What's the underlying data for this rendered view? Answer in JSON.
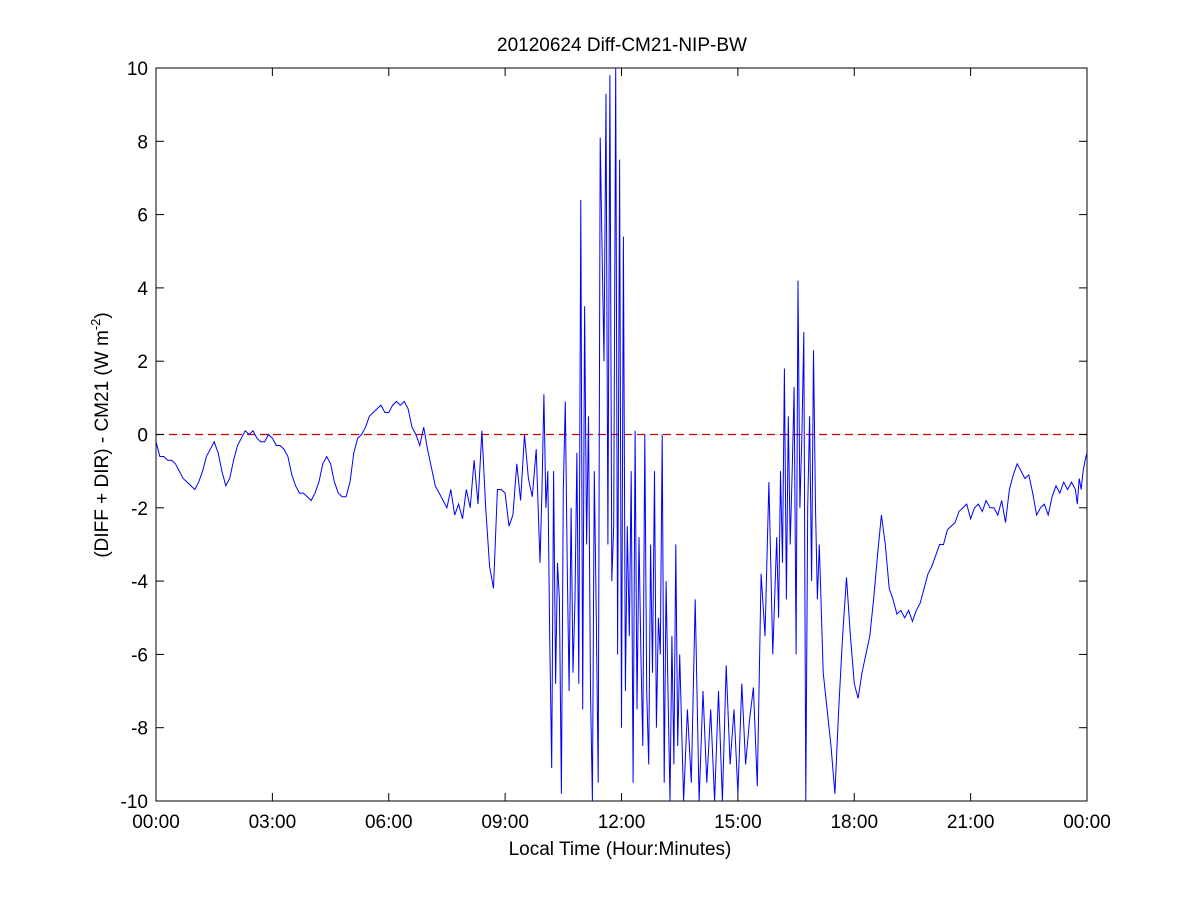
{
  "chart_data": {
    "type": "line",
    "title": "20120624 Diff-CM21-NIP-BW",
    "xlabel": "Local Time (Hour:Minutes)",
    "ylabel": {
      "main": "(DIFF + DIR) - CM21 (W m",
      "superscript": "-2",
      "close": ")"
    },
    "xlim": [
      0,
      24
    ],
    "ylim": [
      -10,
      10
    ],
    "x_ticks": [
      {
        "value": 0,
        "label": "00:00"
      },
      {
        "value": 3,
        "label": "03:00"
      },
      {
        "value": 6,
        "label": "06:00"
      },
      {
        "value": 9,
        "label": "09:00"
      },
      {
        "value": 12,
        "label": "12:00"
      },
      {
        "value": 15,
        "label": "15:00"
      },
      {
        "value": 18,
        "label": "18:00"
      },
      {
        "value": 21,
        "label": "21:00"
      },
      {
        "value": 24,
        "label": "00:00"
      }
    ],
    "y_ticks": [
      {
        "value": 10,
        "label": "10"
      },
      {
        "value": 8,
        "label": "8"
      },
      {
        "value": 6,
        "label": "6"
      },
      {
        "value": 4,
        "label": "4"
      },
      {
        "value": 2,
        "label": "2"
      },
      {
        "value": 0,
        "label": "0"
      },
      {
        "value": -2,
        "label": "-2"
      },
      {
        "value": -4,
        "label": "-4"
      },
      {
        "value": -6,
        "label": "-6"
      },
      {
        "value": -8,
        "label": "-8"
      },
      {
        "value": -10,
        "label": "-10"
      }
    ],
    "grid": false,
    "reference_line": {
      "y": 0,
      "color": "#cc0000",
      "style": "dashed"
    },
    "series": [
      {
        "color": "#0000ff",
        "points": [
          [
            0.0,
            -0.2
          ],
          [
            0.1,
            -0.6
          ],
          [
            0.2,
            -0.6
          ],
          [
            0.3,
            -0.7
          ],
          [
            0.4,
            -0.7
          ],
          [
            0.5,
            -0.8
          ],
          [
            0.6,
            -1.0
          ],
          [
            0.7,
            -1.2
          ],
          [
            0.8,
            -1.3
          ],
          [
            0.9,
            -1.4
          ],
          [
            1.0,
            -1.5
          ],
          [
            1.1,
            -1.3
          ],
          [
            1.2,
            -1.0
          ],
          [
            1.3,
            -0.6
          ],
          [
            1.4,
            -0.4
          ],
          [
            1.5,
            -0.2
          ],
          [
            1.6,
            -0.5
          ],
          [
            1.7,
            -1.0
          ],
          [
            1.8,
            -1.4
          ],
          [
            1.9,
            -1.2
          ],
          [
            2.0,
            -0.7
          ],
          [
            2.1,
            -0.3
          ],
          [
            2.2,
            -0.1
          ],
          [
            2.3,
            0.1
          ],
          [
            2.4,
            0.0
          ],
          [
            2.5,
            0.1
          ],
          [
            2.6,
            -0.1
          ],
          [
            2.7,
            -0.2
          ],
          [
            2.8,
            -0.2
          ],
          [
            2.9,
            0.0
          ],
          [
            3.0,
            -0.1
          ],
          [
            3.1,
            -0.3
          ],
          [
            3.2,
            -0.3
          ],
          [
            3.3,
            -0.4
          ],
          [
            3.4,
            -0.6
          ],
          [
            3.5,
            -1.1
          ],
          [
            3.6,
            -1.4
          ],
          [
            3.7,
            -1.6
          ],
          [
            3.8,
            -1.6
          ],
          [
            3.9,
            -1.7
          ],
          [
            4.0,
            -1.8
          ],
          [
            4.1,
            -1.6
          ],
          [
            4.2,
            -1.3
          ],
          [
            4.3,
            -0.8
          ],
          [
            4.4,
            -0.6
          ],
          [
            4.5,
            -0.8
          ],
          [
            4.6,
            -1.3
          ],
          [
            4.7,
            -1.6
          ],
          [
            4.8,
            -1.7
          ],
          [
            4.9,
            -1.7
          ],
          [
            5.0,
            -1.3
          ],
          [
            5.1,
            -0.5
          ],
          [
            5.2,
            -0.1
          ],
          [
            5.3,
            0.0
          ],
          [
            5.4,
            0.2
          ],
          [
            5.5,
            0.5
          ],
          [
            5.6,
            0.6
          ],
          [
            5.7,
            0.7
          ],
          [
            5.8,
            0.8
          ],
          [
            5.9,
            0.6
          ],
          [
            6.0,
            0.6
          ],
          [
            6.1,
            0.8
          ],
          [
            6.2,
            0.9
          ],
          [
            6.3,
            0.8
          ],
          [
            6.4,
            0.9
          ],
          [
            6.5,
            0.7
          ],
          [
            6.6,
            0.2
          ],
          [
            6.7,
            0.0
          ],
          [
            6.8,
            -0.3
          ],
          [
            6.9,
            0.2
          ],
          [
            7.0,
            -0.4
          ],
          [
            7.1,
            -0.9
          ],
          [
            7.2,
            -1.4
          ],
          [
            7.3,
            -1.6
          ],
          [
            7.4,
            -1.8
          ],
          [
            7.5,
            -2.0
          ],
          [
            7.6,
            -1.5
          ],
          [
            7.7,
            -2.2
          ],
          [
            7.8,
            -1.9
          ],
          [
            7.9,
            -2.3
          ],
          [
            8.0,
            -1.5
          ],
          [
            8.1,
            -2.0
          ],
          [
            8.2,
            -0.7
          ],
          [
            8.3,
            -1.9
          ],
          [
            8.4,
            0.1
          ],
          [
            8.5,
            -2.0
          ],
          [
            8.6,
            -3.6
          ],
          [
            8.7,
            -4.2
          ],
          [
            8.8,
            -1.5
          ],
          [
            8.9,
            -1.5
          ],
          [
            9.0,
            -1.6
          ],
          [
            9.1,
            -2.5
          ],
          [
            9.2,
            -2.2
          ],
          [
            9.3,
            -0.8
          ],
          [
            9.4,
            -1.8
          ],
          [
            9.5,
            0.0
          ],
          [
            9.6,
            -1.2
          ],
          [
            9.7,
            -1.7
          ],
          [
            9.8,
            -0.4
          ],
          [
            9.9,
            -3.5
          ],
          [
            9.95,
            -1.5
          ],
          [
            10.0,
            1.1
          ],
          [
            10.05,
            -2.0
          ],
          [
            10.1,
            -1.0
          ],
          [
            10.15,
            -5.5
          ],
          [
            10.2,
            -9.1
          ],
          [
            10.25,
            -1.0
          ],
          [
            10.3,
            -6.8
          ],
          [
            10.35,
            -3.5
          ],
          [
            10.4,
            -4.5
          ],
          [
            10.45,
            -9.8
          ],
          [
            10.5,
            -1.5
          ],
          [
            10.55,
            0.9
          ],
          [
            10.6,
            -3.5
          ],
          [
            10.65,
            -7.0
          ],
          [
            10.7,
            -2.0
          ],
          [
            10.75,
            -6.5
          ],
          [
            10.8,
            -4.5
          ],
          [
            10.85,
            -0.5
          ],
          [
            10.9,
            -6.8
          ],
          [
            10.95,
            6.4
          ],
          [
            11.0,
            -7.5
          ],
          [
            11.05,
            3.5
          ],
          [
            11.1,
            -3.0
          ],
          [
            11.15,
            0.5
          ],
          [
            11.2,
            -7.0
          ],
          [
            11.25,
            -10.0
          ],
          [
            11.3,
            -1.0
          ],
          [
            11.35,
            -5.0
          ],
          [
            11.4,
            -9.5
          ],
          [
            11.45,
            8.1
          ],
          [
            11.5,
            5.0
          ],
          [
            11.55,
            2.0
          ],
          [
            11.6,
            9.3
          ],
          [
            11.65,
            -3.0
          ],
          [
            11.7,
            9.8
          ],
          [
            11.75,
            -4.0
          ],
          [
            11.8,
            -2.5
          ],
          [
            11.85,
            10.0
          ],
          [
            11.9,
            -6.0
          ],
          [
            11.95,
            7.5
          ],
          [
            12.0,
            -8.0
          ],
          [
            12.05,
            5.4
          ],
          [
            12.1,
            -7.0
          ],
          [
            12.15,
            -2.5
          ],
          [
            12.2,
            -5.5
          ],
          [
            12.25,
            -1.0
          ],
          [
            12.3,
            -9.5
          ],
          [
            12.35,
            0.1
          ],
          [
            12.4,
            -7.5
          ],
          [
            12.45,
            -2.8
          ],
          [
            12.5,
            -6.0
          ],
          [
            12.55,
            -8.5
          ],
          [
            12.6,
            0.0
          ],
          [
            12.65,
            -7.0
          ],
          [
            12.7,
            -9.0
          ],
          [
            12.75,
            -3.0
          ],
          [
            12.8,
            -6.5
          ],
          [
            12.85,
            -1.0
          ],
          [
            12.9,
            -8.0
          ],
          [
            12.95,
            -5.0
          ],
          [
            13.0,
            -6.0
          ],
          [
            13.05,
            0.0
          ],
          [
            13.1,
            -9.5
          ],
          [
            13.15,
            -4.0
          ],
          [
            13.2,
            -7.0
          ],
          [
            13.25,
            -10.0
          ],
          [
            13.3,
            -5.5
          ],
          [
            13.35,
            -9.0
          ],
          [
            13.4,
            -3.0
          ],
          [
            13.45,
            -8.5
          ],
          [
            13.5,
            -6.0
          ],
          [
            13.6,
            -10.0
          ],
          [
            13.7,
            -7.5
          ],
          [
            13.8,
            -9.5
          ],
          [
            13.9,
            -4.5
          ],
          [
            14.0,
            -10.0
          ],
          [
            14.1,
            -7.0
          ],
          [
            14.2,
            -9.5
          ],
          [
            14.3,
            -7.5
          ],
          [
            14.4,
            -10.0
          ],
          [
            14.5,
            -7.0
          ],
          [
            14.6,
            -10.0
          ],
          [
            14.7,
            -6.3
          ],
          [
            14.8,
            -9.0
          ],
          [
            14.9,
            -7.5
          ],
          [
            15.0,
            -9.8
          ],
          [
            15.1,
            -6.8
          ],
          [
            15.2,
            -9.0
          ],
          [
            15.3,
            -7.8
          ],
          [
            15.4,
            -6.9
          ],
          [
            15.5,
            -9.6
          ],
          [
            15.6,
            -3.8
          ],
          [
            15.7,
            -5.5
          ],
          [
            15.8,
            -1.3
          ],
          [
            15.9,
            -6.0
          ],
          [
            16.0,
            -2.8
          ],
          [
            16.05,
            -5.0
          ],
          [
            16.1,
            -1.0
          ],
          [
            16.15,
            -3.5
          ],
          [
            16.2,
            1.8
          ],
          [
            16.25,
            -4.5
          ],
          [
            16.3,
            0.5
          ],
          [
            16.35,
            -3.0
          ],
          [
            16.4,
            -1.0
          ],
          [
            16.45,
            1.3
          ],
          [
            16.5,
            -6.0
          ],
          [
            16.55,
            4.2
          ],
          [
            16.6,
            -2.0
          ],
          [
            16.65,
            0.0
          ],
          [
            16.7,
            2.8
          ],
          [
            16.75,
            -10.0
          ],
          [
            16.8,
            -2.0
          ],
          [
            16.85,
            0.5
          ],
          [
            16.9,
            -4.0
          ],
          [
            16.95,
            2.3
          ],
          [
            17.0,
            -2.0
          ],
          [
            17.05,
            -4.5
          ],
          [
            17.1,
            -3.0
          ],
          [
            17.2,
            -6.5
          ],
          [
            17.3,
            -7.5
          ],
          [
            17.4,
            -8.5
          ],
          [
            17.5,
            -9.8
          ],
          [
            17.6,
            -7.5
          ],
          [
            17.7,
            -5.5
          ],
          [
            17.8,
            -3.9
          ],
          [
            17.9,
            -5.5
          ],
          [
            18.0,
            -6.8
          ],
          [
            18.1,
            -7.2
          ],
          [
            18.2,
            -6.5
          ],
          [
            18.3,
            -6.0
          ],
          [
            18.4,
            -5.5
          ],
          [
            18.5,
            -4.5
          ],
          [
            18.6,
            -3.3
          ],
          [
            18.7,
            -2.2
          ],
          [
            18.8,
            -3.0
          ],
          [
            18.9,
            -4.2
          ],
          [
            19.0,
            -4.5
          ],
          [
            19.1,
            -4.9
          ],
          [
            19.2,
            -4.8
          ],
          [
            19.3,
            -5.0
          ],
          [
            19.4,
            -4.8
          ],
          [
            19.5,
            -5.1
          ],
          [
            19.6,
            -4.8
          ],
          [
            19.7,
            -4.6
          ],
          [
            19.8,
            -4.2
          ],
          [
            19.9,
            -3.8
          ],
          [
            20.0,
            -3.6
          ],
          [
            20.1,
            -3.3
          ],
          [
            20.2,
            -3.0
          ],
          [
            20.3,
            -3.0
          ],
          [
            20.4,
            -2.6
          ],
          [
            20.5,
            -2.5
          ],
          [
            20.6,
            -2.4
          ],
          [
            20.7,
            -2.1
          ],
          [
            20.8,
            -2.0
          ],
          [
            20.9,
            -1.9
          ],
          [
            21.0,
            -2.3
          ],
          [
            21.1,
            -2.0
          ],
          [
            21.2,
            -1.9
          ],
          [
            21.3,
            -2.1
          ],
          [
            21.4,
            -1.8
          ],
          [
            21.5,
            -2.0
          ],
          [
            21.6,
            -2.0
          ],
          [
            21.7,
            -2.2
          ],
          [
            21.8,
            -1.8
          ],
          [
            21.9,
            -2.4
          ],
          [
            22.0,
            -1.5
          ],
          [
            22.1,
            -1.1
          ],
          [
            22.2,
            -0.8
          ],
          [
            22.3,
            -1.0
          ],
          [
            22.4,
            -1.2
          ],
          [
            22.5,
            -1.1
          ],
          [
            22.6,
            -1.6
          ],
          [
            22.7,
            -2.2
          ],
          [
            22.8,
            -2.0
          ],
          [
            22.9,
            -1.9
          ],
          [
            23.0,
            -2.2
          ],
          [
            23.1,
            -1.7
          ],
          [
            23.2,
            -1.4
          ],
          [
            23.3,
            -1.6
          ],
          [
            23.4,
            -1.3
          ],
          [
            23.5,
            -1.5
          ],
          [
            23.6,
            -1.3
          ],
          [
            23.7,
            -1.5
          ],
          [
            23.75,
            -1.9
          ],
          [
            23.8,
            -1.2
          ],
          [
            23.85,
            -1.5
          ],
          [
            23.9,
            -1.0
          ],
          [
            23.95,
            -0.7
          ],
          [
            24.0,
            -0.5
          ]
        ]
      }
    ]
  }
}
